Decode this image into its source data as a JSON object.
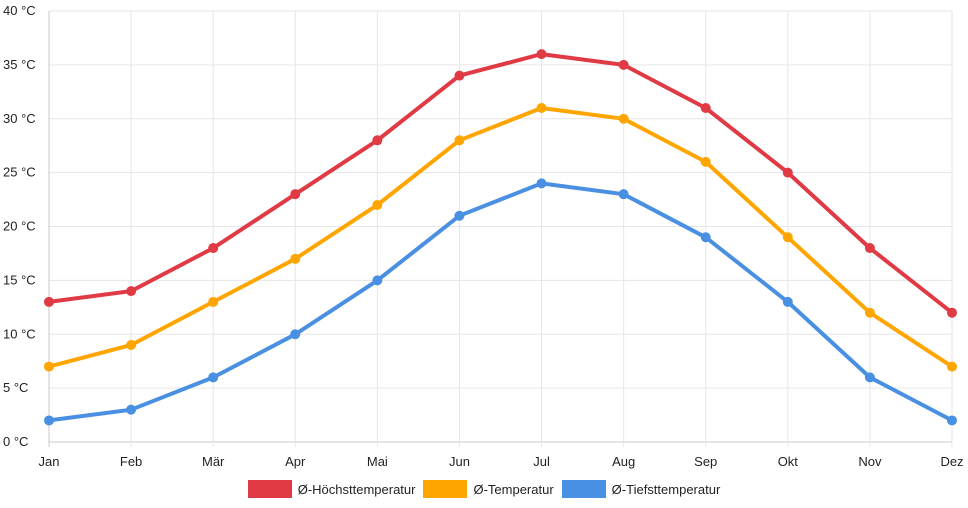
{
  "chart_data": {
    "type": "line",
    "categories": [
      "Jan",
      "Feb",
      "Mär",
      "Apr",
      "Mai",
      "Jun",
      "Jul",
      "Aug",
      "Sep",
      "Okt",
      "Nov",
      "Dez"
    ],
    "series": [
      {
        "name": "Ø-Höchsttemperatur",
        "color": "#e03a45",
        "values": [
          13,
          14,
          18,
          23,
          28,
          34,
          36,
          35,
          31,
          25,
          18,
          12
        ]
      },
      {
        "name": "Ø-Temperatur",
        "color": "#ffa500",
        "values": [
          7,
          9,
          13,
          17,
          22,
          28,
          31,
          30,
          26,
          19,
          12,
          7
        ]
      },
      {
        "name": "Ø-Tiefsttemperatur",
        "color": "#4a90e2",
        "values": [
          2,
          3,
          6,
          10,
          15,
          21,
          24,
          23,
          19,
          13,
          6,
          2
        ]
      }
    ],
    "ylim": [
      0,
      40
    ],
    "yticks": [
      "0 °C",
      "5 °C",
      "10 °C",
      "15 °C",
      "20 °C",
      "25 °C",
      "30 °C",
      "35 °C",
      "40 °C"
    ],
    "ytick_values": [
      0,
      5,
      10,
      15,
      20,
      25,
      30,
      35,
      40
    ],
    "grid": true,
    "legend_position": "bottom"
  }
}
